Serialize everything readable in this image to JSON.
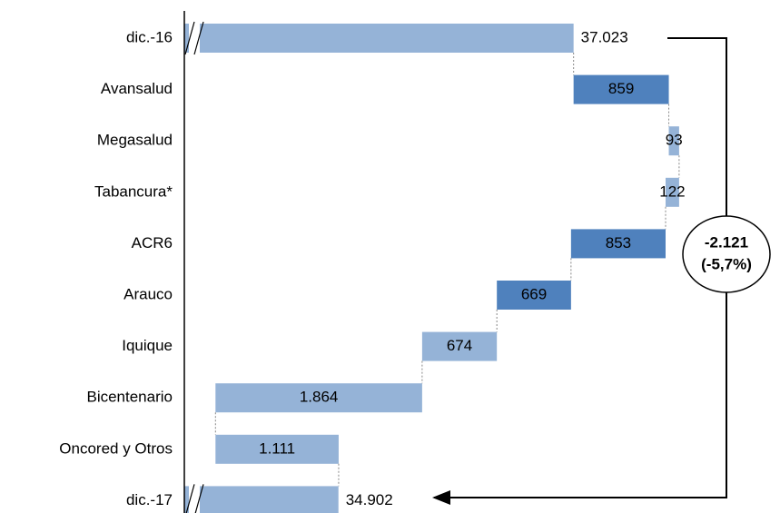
{
  "chart_data": {
    "type": "waterfall",
    "categories": [
      "dic.-16",
      "Avansalud",
      "Megasalud",
      "Tabancura*",
      "ACR6",
      "Arauco",
      "Iquique",
      "Bicentenario",
      "Oncored y Otros",
      "dic.-17"
    ],
    "values": [
      37023,
      859,
      93,
      -122,
      -853,
      -669,
      -674,
      -1864,
      1111,
      34902
    ],
    "value_labels": [
      "37.023",
      "859",
      "93",
      "122",
      "853",
      "669",
      "674",
      "1.864",
      "1.111",
      "34.902"
    ],
    "colors": [
      "#95b3d7",
      "#4f81bd",
      "#95b3d7",
      "#95b3d7",
      "#4f81bd",
      "#4f81bd",
      "#95b3d7",
      "#95b3d7",
      "#95b3d7",
      "#95b3d7"
    ],
    "xlim": [
      33512,
      38500
    ],
    "annotations": [
      "-2.121",
      "(-5,7%)"
    ]
  }
}
